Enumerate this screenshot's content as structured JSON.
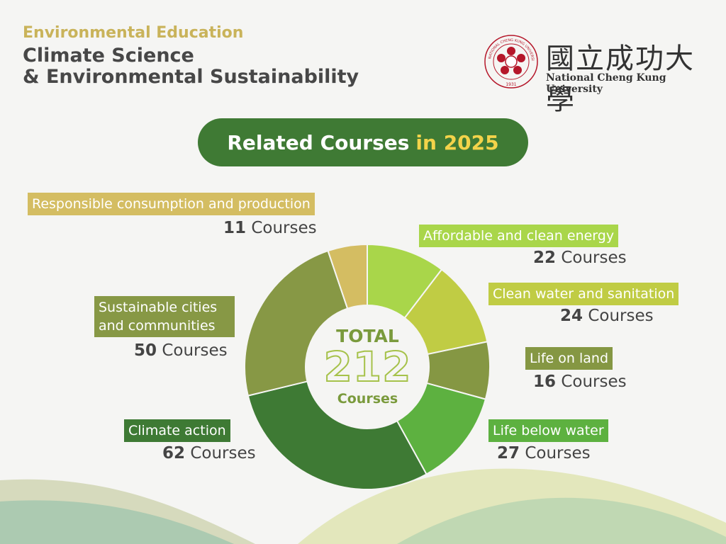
{
  "header": {
    "kicker": "Environmental Education",
    "title_line1": "Climate Science",
    "title_line2": "& Environmental Sustainability"
  },
  "logo": {
    "name_cjk": "國立成功大學",
    "name_en": "National Cheng Kung University",
    "seal_text": "NATIONAL CHENG KUNG UNIVERSITY",
    "seal_year": "1931"
  },
  "banner": {
    "text": "Related Courses",
    "accent": "in 2025"
  },
  "center": {
    "label": "TOTAL",
    "value": "212",
    "unit": "Courses"
  },
  "colors": {
    "brand_green": "#3f7a34",
    "accent_yellow": "#f3d34a",
    "gold": "#c9b35a"
  },
  "chart_data": {
    "type": "pie",
    "donut": true,
    "total": 212,
    "unit": "Courses",
    "slices": [
      {
        "name": "Affordable and clean energy",
        "value": 22,
        "color": "#a9d64a"
      },
      {
        "name": "Clean water and sanitation",
        "value": 24,
        "color": "#c0cc44"
      },
      {
        "name": "Life on land",
        "value": 16,
        "color": "#859743"
      },
      {
        "name": "Life below water",
        "value": 27,
        "color": "#5db140"
      },
      {
        "name": "Climate action",
        "value": 62,
        "color": "#3e7a34"
      },
      {
        "name": "Sustainable cities and communities",
        "value": 50,
        "color": "#879845"
      },
      {
        "name": "Responsible consumption and production",
        "value": 11,
        "color": "#d4bd62"
      }
    ]
  }
}
